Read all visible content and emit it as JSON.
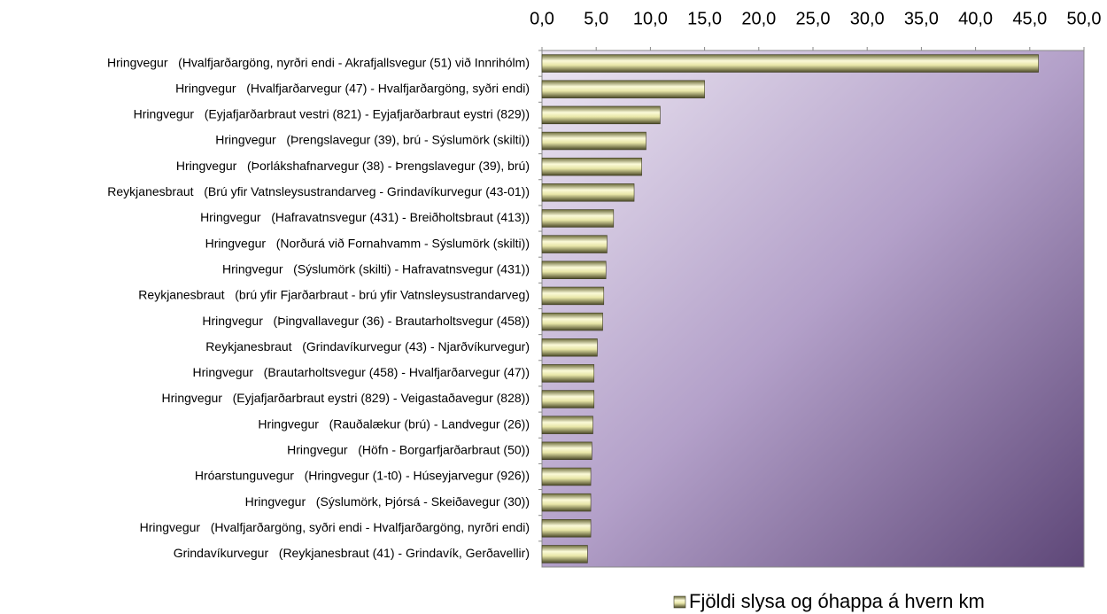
{
  "chart_data": {
    "type": "barh",
    "categories": [
      "Hringvegur   (Hvalfjarðargöng, nyrðri endi - Akrafjallsvegur (51) við Innrihólm)",
      "Hringvegur   (Hvalfjarðarvegur (47) - Hvalfjarðargöng, syðri endi)",
      "Hringvegur   (Eyjafjarðarbraut vestri (821) - Eyjafjarðarbraut eystri (829))",
      "Hringvegur   (Þrengslavegur (39), brú - Sýslumörk (skilti))",
      "Hringvegur   (Þorlákshafnarvegur (38) - Þrengslavegur (39), brú)",
      "Reykjanesbraut   (Brú yfir Vatnsleysustrandarveg - Grindavíkurvegur (43-01))",
      "Hringvegur   (Hafravatnsvegur (431) - Breiðholtsbraut (413))",
      "Hringvegur   (Norðurá við Fornahvamm - Sýslumörk (skilti))",
      "Hringvegur   (Sýslumörk (skilti) - Hafravatnsvegur (431))",
      "Reykjanesbraut   (brú yfir Fjarðarbraut - brú yfir Vatnsleysustrandarveg)",
      "Hringvegur   (Þingvallavegur (36) - Brautarholtsvegur (458))",
      "Reykjanesbraut   (Grindavíkurvegur (43) - Njarðvíkurvegur)",
      "Hringvegur   (Brautarholtsvegur (458) - Hvalfjarðarvegur (47))",
      "Hringvegur   (Eyjafjarðarbraut eystri (829) - Veigastaðavegur (828))",
      "Hringvegur   (Rauðalækur (brú) - Landvegur (26))",
      "Hringvegur   (Höfn - Borgarfjarðarbraut (50))",
      "Hróarstunguvegur   (Hringvegur (1-t0) - Húseyjarvegur (926))",
      "Hringvegur   (Sýslumörk, Þjórsá - Skeiðavegur (30))",
      "Hringvegur   (Hvalfjarðargöng, syðri endi - Hvalfjarðargöng, nyrðri endi)",
      "Grindavíkurvegur   (Reykjanesbraut (41) - Grindavík, Gerðavellir)"
    ],
    "series": [
      {
        "name": "Fjöldi slysa og óhappa á hvern km",
        "color": "#f4f2b8",
        "values": [
          45.8,
          15.0,
          10.9,
          9.6,
          9.2,
          8.5,
          6.6,
          6.0,
          5.9,
          5.7,
          5.6,
          5.1,
          4.8,
          4.8,
          4.7,
          4.6,
          4.5,
          4.5,
          4.5,
          4.2
        ]
      }
    ],
    "xlim": [
      0,
      50
    ],
    "xticks": [
      {
        "value": 0,
        "label": "0,0"
      },
      {
        "value": 5,
        "label": "5,0"
      },
      {
        "value": 10,
        "label": "10,0"
      },
      {
        "value": 15,
        "label": "15,0"
      },
      {
        "value": 20,
        "label": "20,0"
      },
      {
        "value": 25,
        "label": "25,0"
      },
      {
        "value": 30,
        "label": "30,0"
      },
      {
        "value": 35,
        "label": "35,0"
      },
      {
        "value": 40,
        "label": "40,0"
      },
      {
        "value": 45,
        "label": "45,0"
      },
      {
        "value": 50,
        "label": "50,0"
      }
    ],
    "legend": "bottom"
  }
}
